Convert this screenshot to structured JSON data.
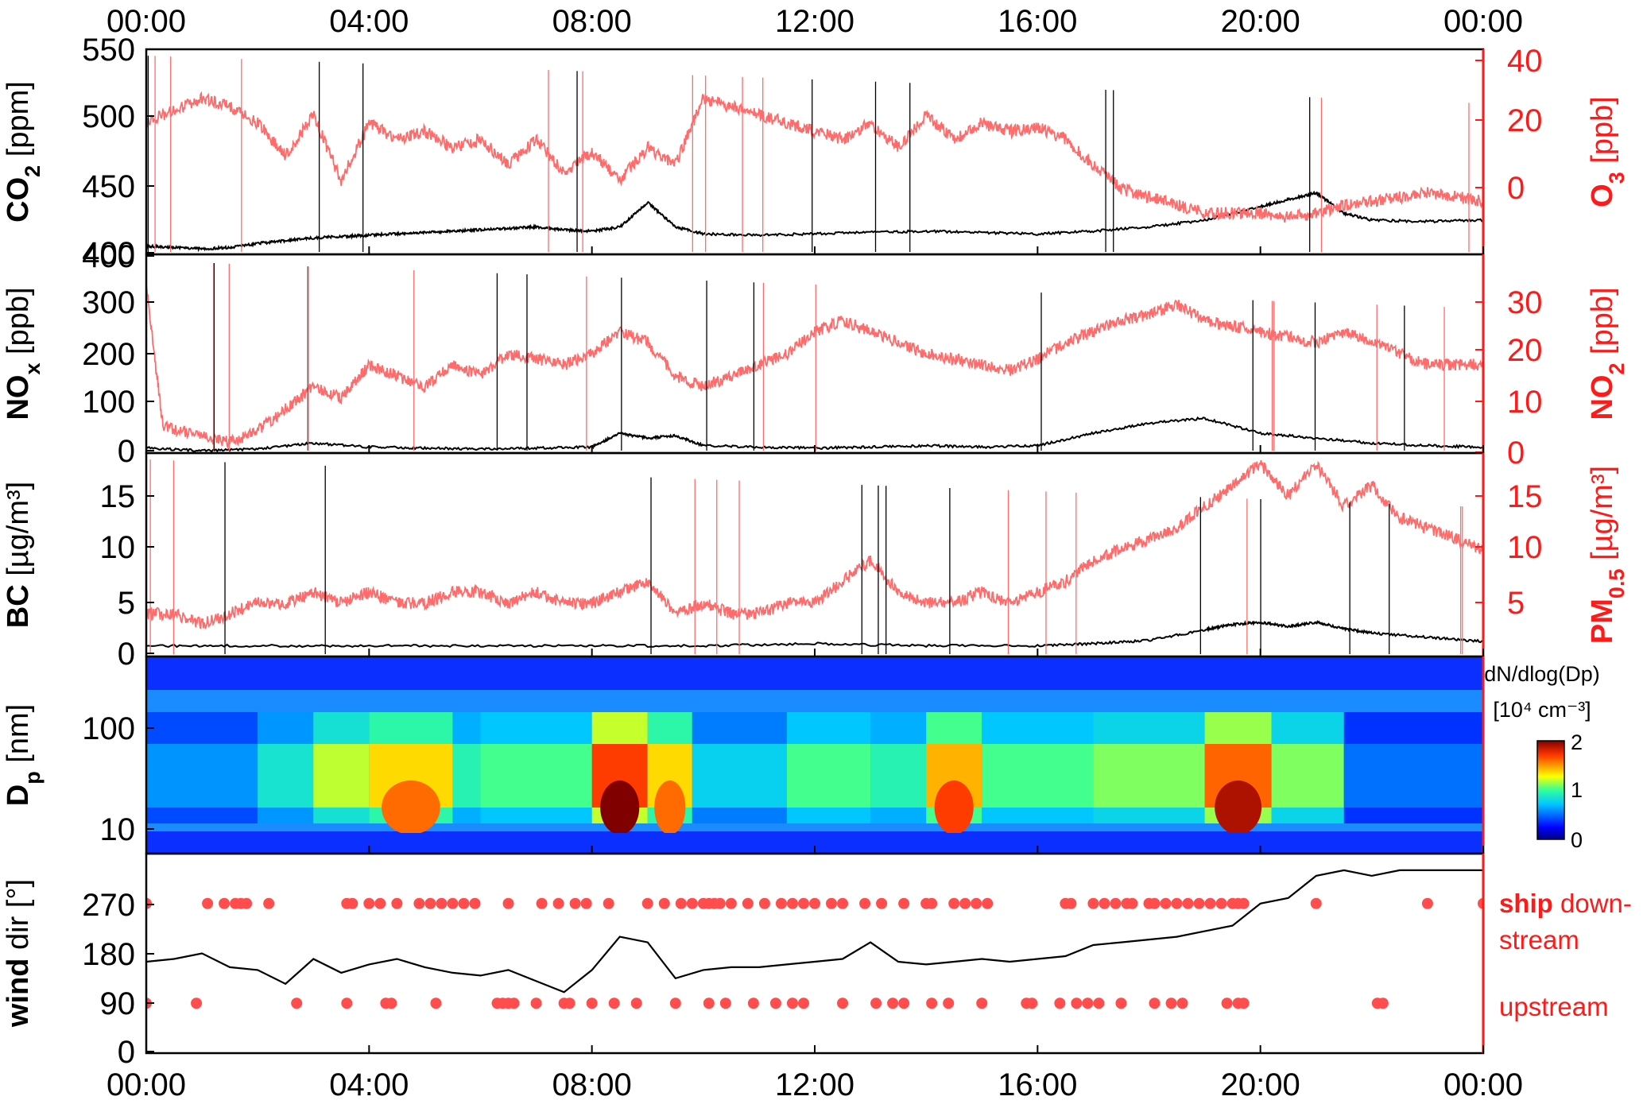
{
  "time_ticks": [
    "00:00",
    "04:00",
    "08:00",
    "12:00",
    "16:00",
    "20:00",
    "00:00"
  ],
  "colors": {
    "black_series": "#000000",
    "red_series": "#ff6b6b",
    "right_axis": "#ff1a1a",
    "dots": "#ff4d4d"
  },
  "chart_data": [
    {
      "type": "line",
      "panel": "co2_o3",
      "left_axis": {
        "label_main": "CO",
        "label_sub": "2",
        "label_unit": " [ppm]",
        "ticks": [
          "550",
          "500",
          "450",
          "400"
        ],
        "range": [
          400,
          550
        ]
      },
      "right_axis": {
        "label_main": "O",
        "label_sub": "3",
        "label_unit": " [ppb]",
        "ticks": [
          "40",
          "20",
          "0"
        ],
        "range": [
          -10,
          40
        ]
      },
      "series": [
        {
          "axis": "left",
          "x": [
            0,
            0.5,
            1,
            1.5,
            2,
            2.5,
            3,
            3.5,
            4,
            4.5,
            5,
            5.5,
            6,
            6.5,
            7,
            7.5,
            8,
            8.5,
            9,
            9.5,
            10,
            11,
            12,
            13,
            14,
            15,
            16,
            17,
            18,
            19,
            20,
            20.5,
            21,
            21.5,
            22,
            23,
            24
          ],
          "y": [
            406,
            405,
            404,
            405,
            408,
            410,
            412,
            413,
            414,
            415,
            416,
            417,
            418,
            419,
            420,
            418,
            417,
            420,
            438,
            420,
            415,
            414,
            415,
            416,
            417,
            416,
            415,
            417,
            420,
            425,
            435,
            440,
            445,
            430,
            425,
            424,
            425
          ]
        },
        {
          "axis": "right",
          "x": [
            0,
            0.5,
            1,
            1.5,
            2,
            2.5,
            3,
            3.5,
            4,
            4.5,
            5,
            5.5,
            6,
            6.5,
            7,
            7.5,
            8,
            8.5,
            9,
            9.5,
            10,
            10.5,
            11,
            11.5,
            12,
            12.5,
            13,
            13.5,
            14,
            14.5,
            15,
            15.5,
            16,
            16.5,
            17,
            17.5,
            18,
            18.5,
            19,
            19.5,
            20,
            20.5,
            21,
            21.5,
            22,
            22.5,
            23,
            23.5,
            24
          ],
          "y": [
            22,
            25,
            28,
            26,
            22,
            14,
            24,
            8,
            22,
            18,
            20,
            16,
            18,
            12,
            18,
            10,
            15,
            8,
            16,
            12,
            28,
            26,
            24,
            22,
            20,
            18,
            22,
            16,
            24,
            18,
            22,
            20,
            21,
            18,
            12,
            6,
            4,
            2,
            0,
            0,
            0,
            -1,
            0,
            2,
            3,
            4,
            5,
            4,
            3
          ]
        }
      ]
    },
    {
      "type": "line",
      "panel": "nox_no2",
      "left_axis": {
        "label_main": "NO",
        "label_sub": "x",
        "label_unit": " [ppb]",
        "ticks": [
          "400",
          "300",
          "200",
          "100",
          "0"
        ],
        "range": [
          0,
          400
        ]
      },
      "right_axis": {
        "label_main": "NO",
        "label_sub": "2",
        "label_unit": " [ppb]",
        "ticks": [
          "30",
          "20",
          "10",
          "0"
        ],
        "range": [
          0,
          36
        ]
      },
      "series": [
        {
          "axis": "left",
          "x": [
            0,
            1,
            2,
            3,
            4,
            5,
            6,
            7,
            8,
            8.5,
            9,
            9.5,
            10,
            11,
            12,
            13,
            14,
            15,
            16,
            17,
            18,
            19,
            20,
            21,
            22,
            23,
            24
          ],
          "y": [
            10,
            5,
            8,
            20,
            12,
            10,
            8,
            10,
            12,
            40,
            30,
            35,
            15,
            12,
            10,
            12,
            15,
            12,
            15,
            40,
            60,
            70,
            40,
            30,
            20,
            15,
            12
          ]
        },
        {
          "axis": "right",
          "x": [
            0,
            0.3,
            1,
            1.5,
            2,
            2.5,
            3,
            3.5,
            4,
            4.5,
            5,
            5.5,
            6,
            6.5,
            7,
            7.5,
            8,
            8.5,
            9,
            9.5,
            10,
            10.5,
            11,
            11.5,
            12,
            12.5,
            13,
            13.5,
            14,
            14.5,
            15,
            15.5,
            16,
            16.5,
            17,
            17.5,
            18,
            18.5,
            19,
            19.5,
            20,
            20.5,
            21,
            21.5,
            22,
            22.5,
            23,
            23.5,
            24
          ],
          "y": [
            30,
            5,
            3,
            2,
            4,
            8,
            12,
            10,
            16,
            14,
            12,
            16,
            14,
            18,
            17,
            16,
            18,
            22,
            20,
            14,
            12,
            14,
            16,
            18,
            22,
            24,
            22,
            20,
            18,
            17,
            16,
            15,
            17,
            20,
            22,
            24,
            25,
            27,
            24,
            23,
            22,
            21,
            20,
            22,
            20,
            18,
            16,
            16,
            16
          ]
        }
      ]
    },
    {
      "type": "line",
      "panel": "bc_pm",
      "left_axis": {
        "label_main": "BC",
        "label_unit": " [µg/m³]",
        "ticks": [
          "15",
          "10",
          "5",
          "0"
        ],
        "range": [
          0,
          19
        ]
      },
      "right_axis": {
        "label_main": "PM",
        "label_sub": "0.5",
        "label_unit": " [µg/m³]",
        "ticks": [
          "15",
          "10",
          "5"
        ],
        "range": [
          0,
          19
        ]
      },
      "series": [
        {
          "axis": "left",
          "x": [
            0,
            2,
            4,
            6,
            8,
            10,
            12,
            14,
            16,
            17,
            18,
            19,
            19.5,
            20,
            20.5,
            21,
            21.5,
            22,
            23,
            24
          ],
          "y": [
            1,
            1,
            1,
            1,
            1,
            1,
            1.2,
            1,
            1,
            1.2,
            1.5,
            2.5,
            3,
            3.2,
            2.8,
            3.2,
            2.6,
            2.2,
            1.8,
            1.4
          ]
        },
        {
          "axis": "right",
          "x": [
            0,
            0.5,
            1,
            1.5,
            2,
            2.5,
            3,
            3.5,
            4,
            4.5,
            5,
            5.5,
            6,
            6.5,
            7,
            7.5,
            8,
            8.5,
            9,
            9.5,
            10,
            10.5,
            11,
            11.5,
            12,
            12.5,
            13,
            13.5,
            14,
            14.5,
            15,
            15.5,
            16,
            16.5,
            17,
            17.5,
            18,
            18.5,
            19,
            19.5,
            20,
            20.5,
            21,
            21.5,
            22,
            22.5,
            23,
            23.5,
            24
          ],
          "y": [
            4,
            4,
            3,
            4,
            5,
            5,
            6,
            5,
            6,
            5,
            5,
            6,
            6,
            5,
            6,
            5,
            5,
            6,
            7,
            4,
            5,
            4,
            4,
            5,
            5,
            7,
            9,
            6,
            5,
            5,
            6,
            5,
            6,
            7,
            9,
            10,
            11,
            12,
            14,
            16,
            18,
            15,
            18,
            14,
            16,
            13,
            12,
            11,
            10
          ]
        }
      ]
    },
    {
      "type": "heatmap",
      "panel": "size_distribution",
      "left_axis": {
        "label_main": "D",
        "label_sub": "p",
        "label_unit": " [nm]",
        "ticks": [
          "100",
          "10"
        ],
        "range": [
          6,
          500
        ],
        "scale": "log"
      },
      "colorbar": {
        "label_main": "dN/dlog(Dp)",
        "label_unit": "[10⁴ cm⁻³]",
        "ticks": [
          "2",
          "1",
          "0"
        ],
        "range": [
          0,
          2
        ]
      },
      "dense_zones_hours": [
        [
          0,
          2,
          0.7
        ],
        [
          2,
          3,
          1.0
        ],
        [
          3,
          4,
          1.4
        ],
        [
          4,
          5.5,
          1.6
        ],
        [
          5.5,
          6,
          1.1
        ],
        [
          6,
          8,
          1.2
        ],
        [
          8,
          9,
          2.0
        ],
        [
          9,
          9.8,
          1.6
        ],
        [
          9.8,
          11.5,
          0.9
        ],
        [
          11.5,
          13,
          1.2
        ],
        [
          13,
          14,
          1.1
        ],
        [
          14,
          15,
          1.7
        ],
        [
          15,
          17,
          1.2
        ],
        [
          17,
          19,
          1.3
        ],
        [
          19,
          20.2,
          1.9
        ],
        [
          20.2,
          21.5,
          1.3
        ],
        [
          21.5,
          24,
          0.6
        ]
      ]
    },
    {
      "type": "scatter",
      "panel": "wind",
      "left_axis": {
        "label_main": "wind",
        "label_unit": " dir [°]",
        "ticks": [
          "270",
          "180",
          "90",
          "0"
        ],
        "range": [
          0,
          360
        ]
      },
      "annotations": {
        "downstream_bold": "ship",
        "downstream_rest": " down-",
        "downstream_line2": "stream",
        "upstream": "upstream"
      },
      "wind_line": {
        "x": [
          0,
          0.5,
          1,
          1.5,
          2,
          2.5,
          3,
          3.5,
          4,
          4.5,
          5,
          5.5,
          6,
          6.5,
          7,
          7.5,
          8,
          8.5,
          9,
          9.5,
          10,
          10.5,
          11,
          11.5,
          12,
          12.5,
          13,
          13.5,
          14,
          14.5,
          15,
          15.5,
          16,
          16.5,
          17,
          17.5,
          18,
          18.5,
          19,
          19.5,
          20,
          20.5,
          21,
          21.5,
          22,
          22.5,
          23,
          23.5,
          24
        ],
        "y": [
          165,
          170,
          180,
          155,
          150,
          125,
          170,
          145,
          160,
          170,
          155,
          145,
          140,
          150,
          130,
          110,
          150,
          210,
          200,
          135,
          150,
          155,
          155,
          160,
          165,
          170,
          200,
          165,
          160,
          165,
          170,
          165,
          170,
          175,
          195,
          200,
          205,
          210,
          220,
          230,
          270,
          280,
          320,
          330,
          320,
          330,
          330,
          330,
          330
        ]
      },
      "downstream_hours": [
        0,
        1.1,
        1.4,
        1.6,
        1.7,
        1.8,
        2.2,
        3.6,
        3.7,
        4.0,
        4.2,
        4.5,
        4.9,
        5.1,
        5.3,
        5.5,
        5.7,
        5.9,
        6.5,
        7.1,
        7.4,
        7.7,
        7.9,
        8.3,
        9.0,
        9.3,
        9.6,
        9.8,
        10.0,
        10.1,
        10.2,
        10.3,
        10.5,
        10.8,
        11.1,
        11.4,
        11.6,
        11.8,
        12.0,
        12.3,
        12.5,
        12.9,
        13.2,
        13.6,
        14.0,
        14.1,
        14.5,
        14.7,
        14.9,
        15.1,
        16.5,
        16.6,
        17.0,
        17.2,
        17.4,
        17.6,
        17.7,
        18.0,
        18.1,
        18.3,
        18.5,
        18.7,
        18.9,
        19.1,
        19.3,
        19.5,
        19.6,
        19.7,
        21.0,
        23.0,
        24.0
      ],
      "upstream_hours": [
        0,
        0.9,
        2.7,
        3.6,
        4.3,
        4.4,
        5.2,
        6.3,
        6.4,
        6.5,
        6.6,
        7.0,
        7.5,
        7.6,
        8.0,
        8.4,
        8.8,
        9.5,
        10.1,
        10.4,
        10.9,
        11.3,
        11.6,
        11.8,
        12.5,
        13.1,
        13.4,
        13.6,
        14.1,
        14.4,
        15.0,
        15.8,
        15.9,
        16.4,
        16.7,
        16.9,
        17.1,
        17.5,
        18.1,
        18.4,
        18.6,
        19.4,
        19.6,
        19.7,
        22.1,
        22.2
      ]
    }
  ]
}
